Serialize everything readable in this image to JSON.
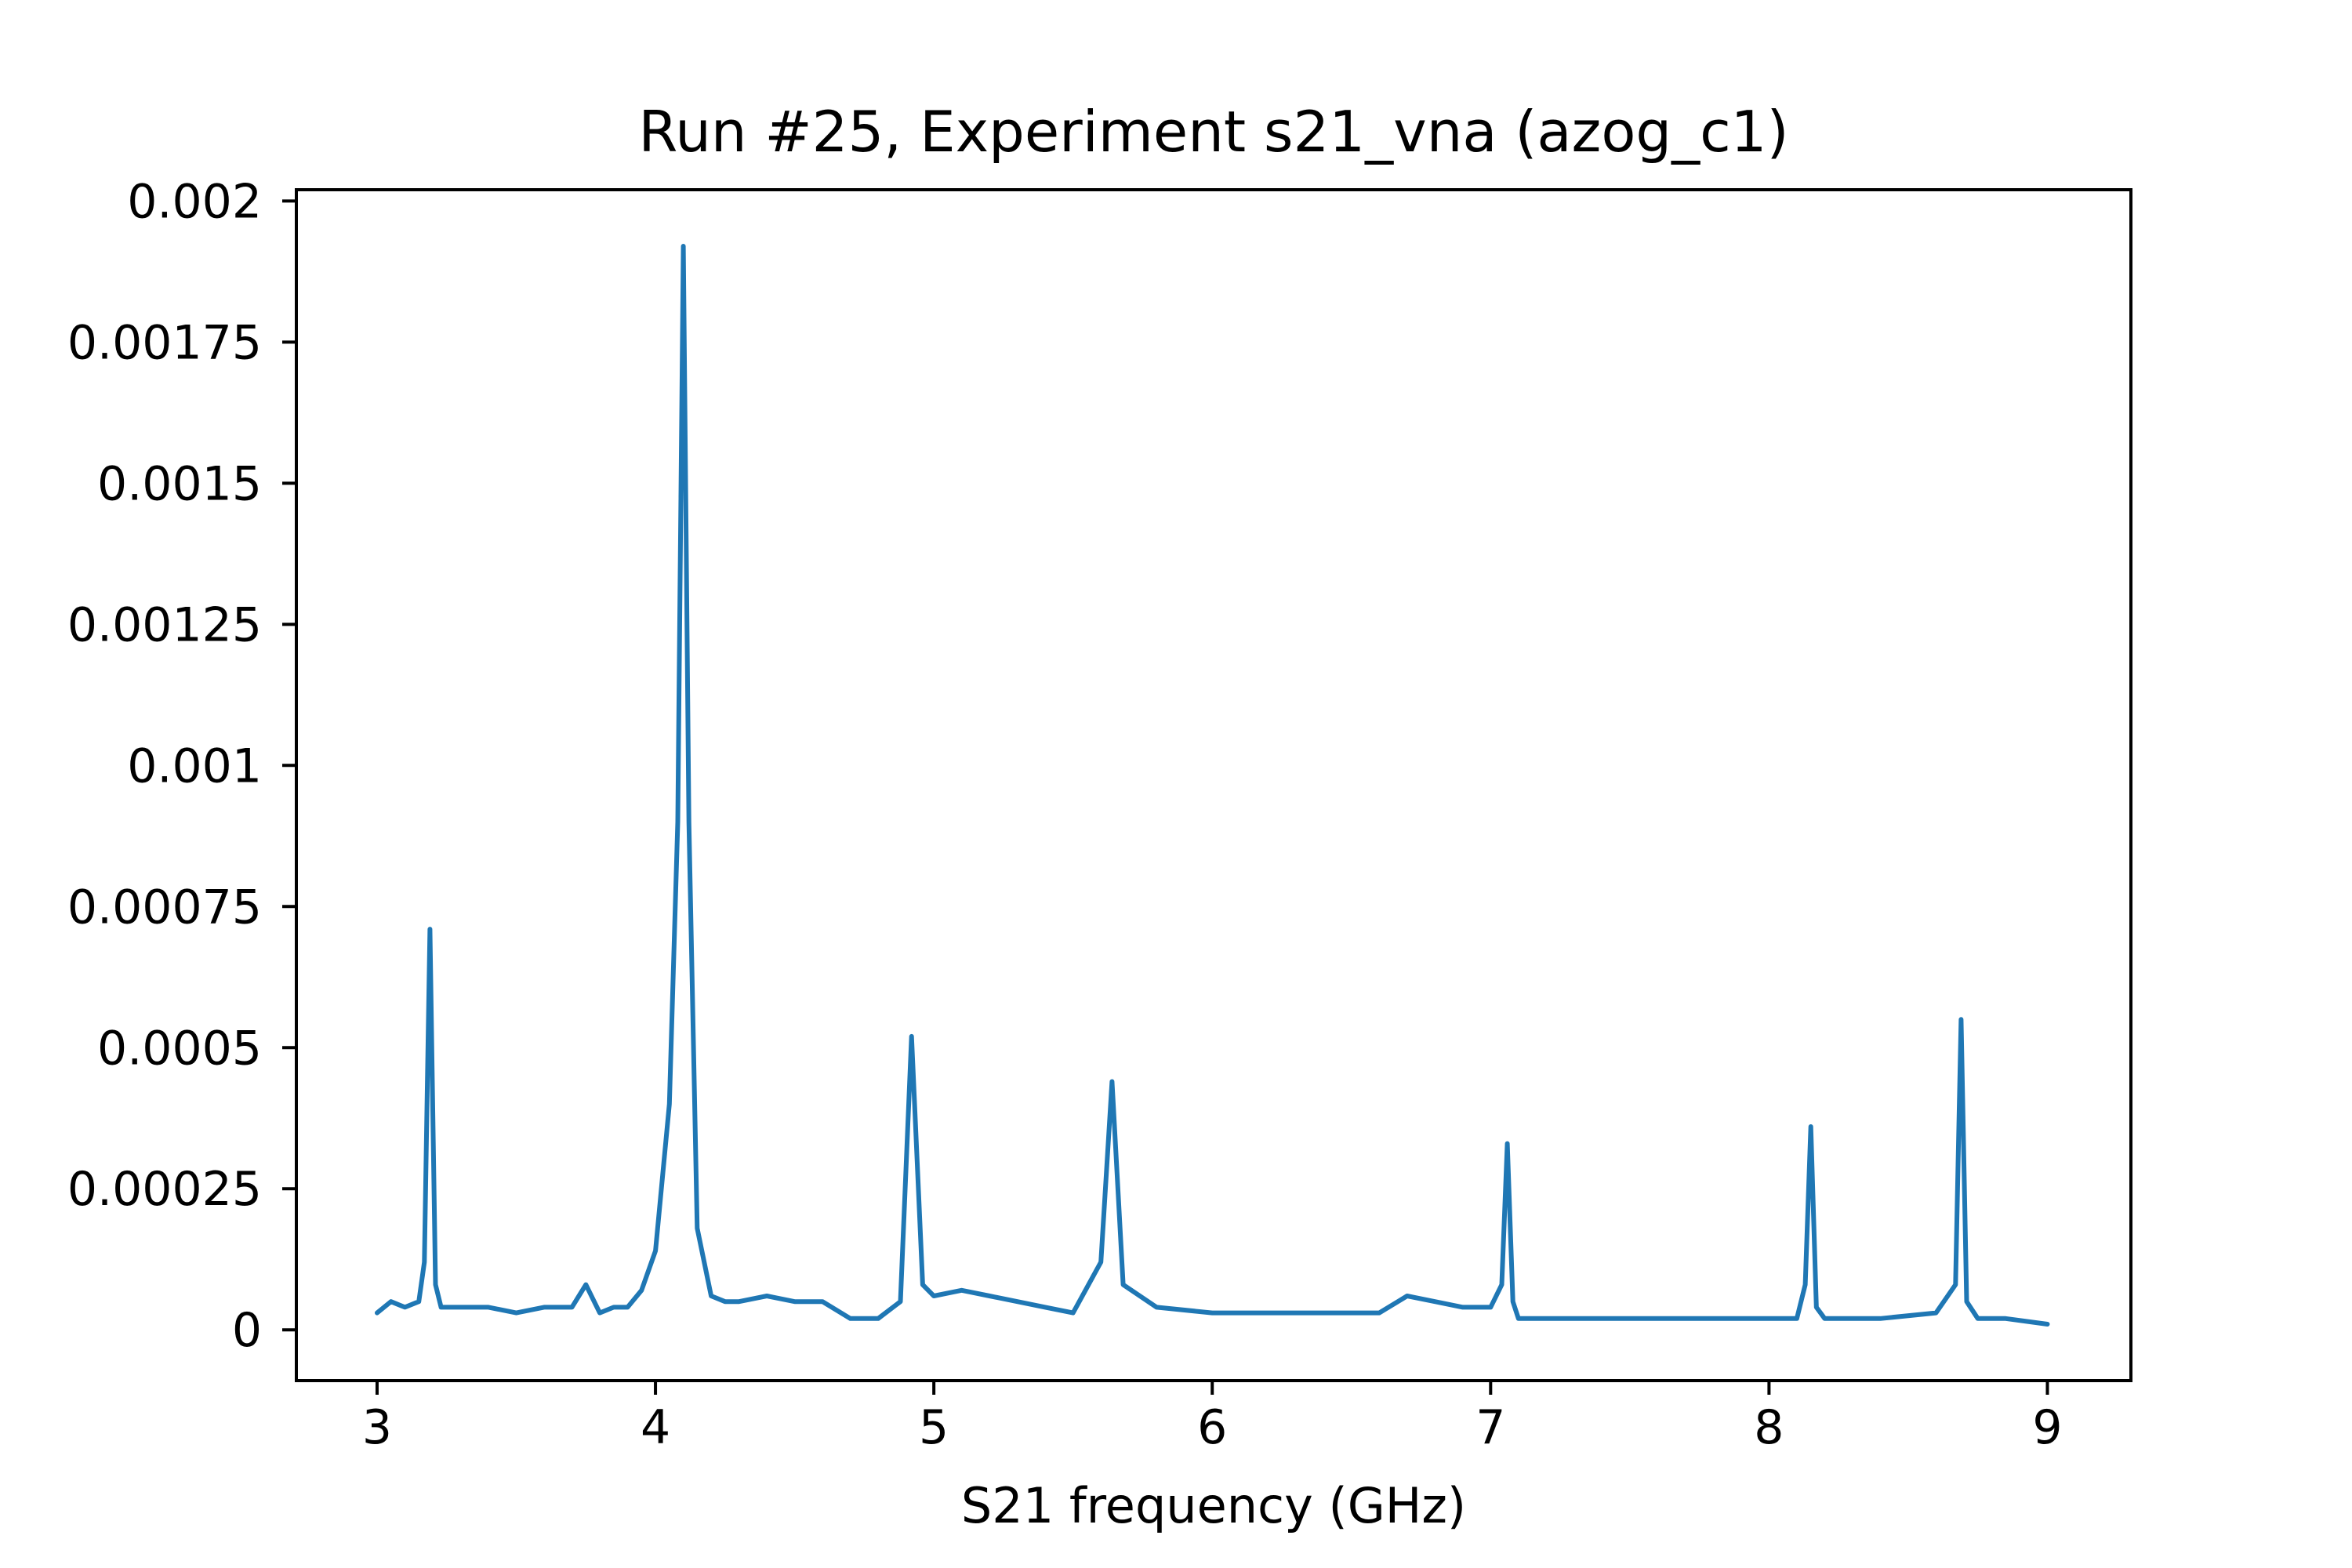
{
  "chart_data": {
    "type": "line",
    "title": "Run #25, Experiment s21_vna (azog_c1)",
    "xlabel": "S21 frequency (GHz)",
    "ylabel": "",
    "xlim": [
      2.71,
      9.3
    ],
    "ylim": [
      -9e-05,
      0.00202
    ],
    "x_ticks": [
      3,
      4,
      5,
      6,
      7,
      8,
      9
    ],
    "x_tick_labels": [
      "3",
      "4",
      "5",
      "6",
      "7",
      "8",
      "9"
    ],
    "y_ticks": [
      0,
      0.00025,
      0.0005,
      0.00075,
      0.001,
      0.00125,
      0.0015,
      0.00175,
      0.002
    ],
    "y_tick_labels": [
      "0",
      "0.00025",
      "0.0005",
      "0.00075",
      "0.001",
      "0.00125",
      "0.0015",
      "0.00175",
      "0.002"
    ],
    "grid": false,
    "color": "#1f77b4",
    "series": [
      {
        "x": [
          3.0,
          3.05,
          3.1,
          3.15,
          3.17,
          3.19,
          3.21,
          3.23,
          3.3,
          3.4,
          3.5,
          3.6,
          3.7,
          3.75,
          3.8,
          3.85,
          3.9,
          3.95,
          4.0,
          4.05,
          4.08,
          4.1,
          4.12,
          4.15,
          4.2,
          4.25,
          4.3,
          4.4,
          4.5,
          4.6,
          4.7,
          4.8,
          4.88,
          4.92,
          4.96,
          5.0,
          5.1,
          5.2,
          5.3,
          5.4,
          5.5,
          5.6,
          5.64,
          5.68,
          5.8,
          6.0,
          6.2,
          6.4,
          6.6,
          6.7,
          6.8,
          6.9,
          7.0,
          7.04,
          7.06,
          7.08,
          7.1,
          7.3,
          7.5,
          7.7,
          7.9,
          8.1,
          8.13,
          8.15,
          8.17,
          8.2,
          8.4,
          8.6,
          8.67,
          8.69,
          8.71,
          8.75,
          8.85,
          9.0
        ],
        "y": [
          3e-05,
          5e-05,
          4e-05,
          5e-05,
          0.00012,
          0.00071,
          8e-05,
          4e-05,
          4e-05,
          4e-05,
          3e-05,
          4e-05,
          4e-05,
          8e-05,
          3e-05,
          4e-05,
          4e-05,
          7e-05,
          0.00014,
          0.0004,
          0.0009,
          0.00192,
          0.0009,
          0.00018,
          6e-05,
          5e-05,
          5e-05,
          6e-05,
          5e-05,
          5e-05,
          2e-05,
          2e-05,
          5e-05,
          0.00052,
          8e-05,
          6e-05,
          7e-05,
          6e-05,
          5e-05,
          4e-05,
          3e-05,
          0.00012,
          0.00044,
          8e-05,
          4e-05,
          3e-05,
          3e-05,
          3e-05,
          3e-05,
          6e-05,
          5e-05,
          4e-05,
          4e-05,
          8e-05,
          0.00033,
          5e-05,
          2e-05,
          2e-05,
          2e-05,
          2e-05,
          2e-05,
          2e-05,
          8e-05,
          0.00036,
          4e-05,
          2e-05,
          2e-05,
          3e-05,
          8e-05,
          0.00055,
          5e-05,
          2e-05,
          2e-05,
          1e-05
        ]
      }
    ]
  }
}
